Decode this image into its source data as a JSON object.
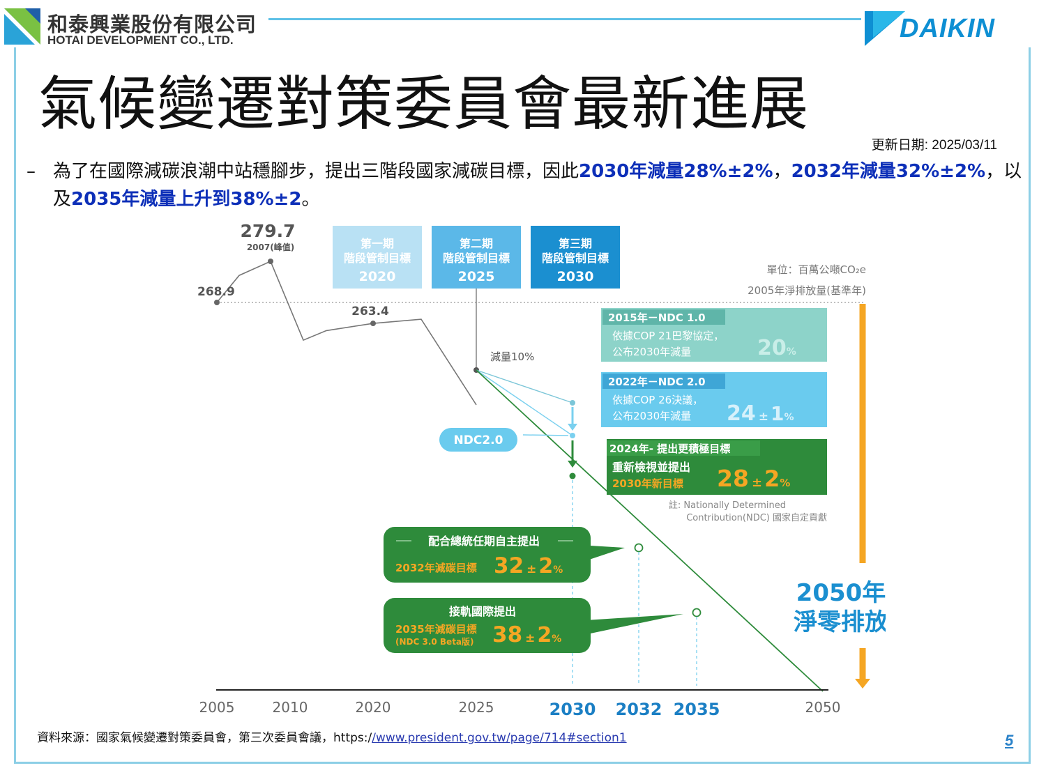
{
  "header": {
    "company_zh": "和泰興業股份有限公司",
    "company_en": "HOTAI DEVELOPMENT CO., LTD.",
    "brand": "DAIKIN"
  },
  "title": "氣候變遷對策委員會最新進展",
  "update_date": "更新日期: 2025/03/11",
  "bullet": {
    "dash": "–",
    "part1": "為了在國際減碳浪潮中站穩腳步，提出三階段國家減碳目標，因此",
    "hl1": "2030年減量28%±2%",
    "sep1": "，",
    "hl2": "2032年減量32%±2%",
    "sep2": "，以及",
    "hl3": "2035年減量上升到38%±2",
    "end": "。"
  },
  "source": {
    "prefix": "資料來源：國家氣候變遷對策委員會，第三次委員會議，https:/",
    "link": "/www.president.gov.tw/page/714#section1"
  },
  "page_number": "5",
  "colors": {
    "accent_blue": "#0d2fb8",
    "frame": "#8ccfe6",
    "orange": "#f5a623",
    "green_dark": "#2e8b3b",
    "green_mid": "#3a9d48",
    "teal": "#8dd3c9",
    "sky": "#6acbee",
    "dark_blue_box": "#1b8fd0"
  },
  "chart_data": {
    "type": "line",
    "unit_label": "單位：百萬公噸CO₂e",
    "baseline_label": "2005年淨排放量(基準年)",
    "x_ticks": [
      "2005",
      "2010",
      "2020",
      "2025",
      "2030",
      "2032",
      "2035",
      "2050"
    ],
    "history": {
      "points": [
        {
          "x": 2005,
          "y": 268.9
        },
        {
          "x": 2006,
          "y": 276
        },
        {
          "x": 2007,
          "y": 279.7
        },
        {
          "x": 2009,
          "y": 259
        },
        {
          "x": 2011,
          "y": 261.5
        },
        {
          "x": 2020,
          "y": 263.4
        },
        {
          "x": 2022,
          "y": 264.5
        },
        {
          "x": 2025,
          "y": 242
        }
      ],
      "labels": [
        {
          "x": 2005,
          "y": 268.9,
          "text": "268.9"
        },
        {
          "x": 2007,
          "y": 279.7,
          "text": "279.7",
          "sub": "2007(峰值)"
        },
        {
          "x": 2020,
          "y": 263.4,
          "text": "263.4"
        }
      ]
    },
    "reduction_2025": "減量10%",
    "ndc_label": "NDC2.0",
    "targets": [
      {
        "x": 2030,
        "value": "28 ± 2%"
      },
      {
        "x": 2032,
        "value": "32 ± 2%"
      },
      {
        "x": 2035,
        "value": "38 ± 2%"
      },
      {
        "x": 2050,
        "value": "net zero"
      }
    ],
    "phases": [
      {
        "line1": "第一期",
        "line2": "階段管制目標",
        "year": "2020"
      },
      {
        "line1": "第二期",
        "line2": "階段管制目標",
        "year": "2025"
      },
      {
        "line1": "第三期",
        "line2": "階段管制目標",
        "year": "2030"
      }
    ],
    "ndc_boxes": [
      {
        "head": "2015年－NDC 1.0",
        "l1": "依據COP 21巴黎協定，",
        "l2": "公布2030年減量",
        "big": "20",
        "pm": "",
        "small": "",
        "pct": "%"
      },
      {
        "head": "2022年－NDC 2.0",
        "l1": "依據COP 26決議，",
        "l2": "公布2030年減量",
        "big": "24",
        "pm": "±",
        "small": "1",
        "pct": "%"
      },
      {
        "head": "2024年- 提出更積極目標",
        "l1": "重新檢視並提出",
        "l2": "2030年新目標",
        "big": "28",
        "pm": "±",
        "small": "2",
        "pct": "%"
      }
    ],
    "note_line1": "註: Nationally Determined",
    "note_line2": "Contribution(NDC) 國家自定貢獻",
    "callouts": [
      {
        "head": "配合總統任期自主提出",
        "label1": "2032年減碳目標",
        "label2": "",
        "big": "32",
        "pm": "±",
        "small": "2",
        "pct": "%"
      },
      {
        "head": "接軌國際提出",
        "label1": "2035年減碳目標",
        "label2": "(NDC 3.0 Beta版)",
        "big": "38",
        "pm": "±",
        "small": "2",
        "pct": "%"
      }
    ],
    "netzero_line1": "2050年",
    "netzero_line2": "淨零排放"
  }
}
